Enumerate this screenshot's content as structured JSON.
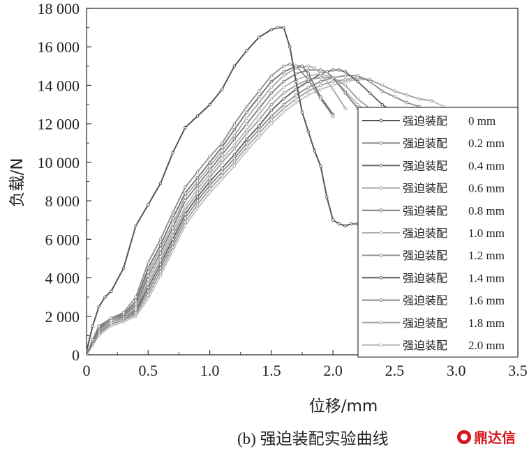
{
  "chart_data": {
    "type": "line",
    "caption_label": "(b)",
    "caption_text": "强迫装配实验曲线",
    "xlabel": "位移/mm",
    "ylabel": "负载/N",
    "xlim": [
      0,
      3.5
    ],
    "ylim": [
      0,
      18000
    ],
    "x_ticks": [
      "0",
      "0.5",
      "1.0",
      "1.5",
      "2.0",
      "2.5",
      "3.0",
      "3.5"
    ],
    "y_ticks": [
      "0",
      "2 000",
      "4 000",
      "6 000",
      "8 000",
      "10 000",
      "12 000",
      "14 000",
      "16 000",
      "18 000"
    ],
    "legend_position": "right",
    "legend_prefix": "强迫装配",
    "series": [
      {
        "name": "0 mm",
        "color": "#555555",
        "x": [
          0,
          0.05,
          0.1,
          0.15,
          0.2,
          0.3,
          0.4,
          0.5,
          0.6,
          0.7,
          0.8,
          0.9,
          1.0,
          1.1,
          1.2,
          1.3,
          1.4,
          1.5,
          1.55,
          1.6,
          1.65,
          1.7,
          1.75,
          1.8,
          1.85,
          1.9,
          1.95,
          2.0,
          2.05,
          2.1,
          2.15,
          2.2
        ],
        "y": [
          200,
          1500,
          2500,
          3000,
          3300,
          4500,
          6700,
          7800,
          8900,
          10500,
          11800,
          12400,
          13000,
          13800,
          15000,
          15800,
          16500,
          16900,
          17000,
          17000,
          16000,
          14200,
          12600,
          11600,
          10600,
          9800,
          8200,
          7000,
          6800,
          6700,
          6800,
          6800
        ]
      },
      {
        "name": "0.2 mm",
        "color": "#8c8c8c",
        "x": [
          0,
          0.05,
          0.1,
          0.2,
          0.3,
          0.4,
          0.5,
          0.6,
          0.7,
          0.8,
          0.9,
          1.0,
          1.1,
          1.2,
          1.3,
          1.4,
          1.5,
          1.6,
          1.65,
          1.7,
          1.8,
          1.9,
          2.0
        ],
        "y": [
          0,
          800,
          1500,
          1900,
          2200,
          3000,
          4800,
          6000,
          7400,
          8700,
          9500,
          10300,
          11000,
          12000,
          12900,
          13700,
          14500,
          15000,
          15100,
          15000,
          14300,
          13300,
          12400
        ]
      },
      {
        "name": "0.4 mm",
        "color": "#6e6e6e",
        "x": [
          0,
          0.05,
          0.1,
          0.2,
          0.3,
          0.4,
          0.5,
          0.6,
          0.7,
          0.8,
          0.9,
          1.0,
          1.1,
          1.2,
          1.3,
          1.4,
          1.5,
          1.6,
          1.7,
          1.75,
          1.8,
          1.9,
          2.0
        ],
        "y": [
          0,
          700,
          1400,
          1900,
          2100,
          2800,
          4500,
          5700,
          7100,
          8400,
          9200,
          10000,
          10800,
          11700,
          12600,
          13400,
          14200,
          14700,
          15000,
          15000,
          14600,
          13400,
          12500
        ]
      },
      {
        "name": "0.6 mm",
        "color": "#a6a6a6",
        "x": [
          0,
          0.05,
          0.1,
          0.2,
          0.3,
          0.4,
          0.5,
          0.6,
          0.7,
          0.8,
          0.9,
          1.0,
          1.1,
          1.2,
          1.3,
          1.4,
          1.5,
          1.6,
          1.7,
          1.8,
          1.85,
          1.9,
          2.0,
          2.1
        ],
        "y": [
          0,
          700,
          1400,
          1800,
          2100,
          2700,
          4300,
          5500,
          6800,
          8200,
          9000,
          9800,
          10600,
          11400,
          12300,
          13100,
          13900,
          14500,
          14900,
          15000,
          14900,
          14600,
          13800,
          12800
        ]
      },
      {
        "name": "0.8 mm",
        "color": "#7d7d7d",
        "x": [
          0,
          0.05,
          0.1,
          0.2,
          0.3,
          0.4,
          0.5,
          0.6,
          0.7,
          0.8,
          0.9,
          1.0,
          1.1,
          1.2,
          1.3,
          1.4,
          1.5,
          1.6,
          1.7,
          1.8,
          1.9,
          1.95,
          2.0,
          2.1,
          2.2
        ],
        "y": [
          0,
          700,
          1300,
          1800,
          2000,
          2600,
          4100,
          5300,
          6600,
          8000,
          8800,
          9600,
          10400,
          11200,
          12000,
          12800,
          13600,
          14200,
          14600,
          14800,
          14800,
          14700,
          14400,
          13600,
          12800
        ]
      },
      {
        "name": "1.0 mm",
        "color": "#b0b0b0",
        "x": [
          0,
          0.05,
          0.1,
          0.2,
          0.3,
          0.4,
          0.5,
          0.6,
          0.7,
          0.8,
          0.9,
          1.0,
          1.1,
          1.2,
          1.3,
          1.4,
          1.5,
          1.6,
          1.7,
          1.8,
          1.9,
          2.0,
          2.1,
          2.2,
          2.3
        ],
        "y": [
          0,
          700,
          1300,
          1700,
          2000,
          2500,
          3900,
          5100,
          6400,
          7700,
          8600,
          9400,
          10200,
          10900,
          11700,
          12500,
          13300,
          13900,
          14300,
          14500,
          14600,
          14400,
          13700,
          13000,
          12600
        ]
      },
      {
        "name": "1.2 mm",
        "color": "#9a9a9a",
        "x": [
          0,
          0.05,
          0.1,
          0.2,
          0.3,
          0.4,
          0.5,
          0.6,
          0.7,
          0.8,
          0.9,
          1.0,
          1.1,
          1.2,
          1.3,
          1.4,
          1.5,
          1.6,
          1.7,
          1.8,
          1.9,
          2.0,
          2.1,
          2.2,
          2.3,
          2.4
        ],
        "y": [
          0,
          600,
          1200,
          1700,
          1900,
          2400,
          3700,
          4900,
          6200,
          7500,
          8400,
          9200,
          10000,
          10700,
          11500,
          12200,
          13000,
          13600,
          14000,
          14300,
          14400,
          14400,
          14000,
          13300,
          12800,
          12500
        ]
      },
      {
        "name": "1.4 mm",
        "color": "#5e5e5e",
        "x": [
          0,
          0.05,
          0.1,
          0.2,
          0.3,
          0.4,
          0.5,
          0.6,
          0.7,
          0.8,
          0.9,
          1.0,
          1.1,
          1.2,
          1.3,
          1.4,
          1.5,
          1.6,
          1.7,
          1.8,
          1.9,
          2.0,
          2.05,
          2.1,
          2.2,
          2.3,
          2.4,
          2.5
        ],
        "y": [
          0,
          600,
          1200,
          1700,
          1900,
          2300,
          3500,
          4700,
          6000,
          7300,
          8200,
          9000,
          9700,
          10400,
          11200,
          11900,
          12700,
          13300,
          13800,
          14200,
          14600,
          14800,
          14800,
          14700,
          14200,
          13600,
          13000,
          12600
        ]
      },
      {
        "name": "1.6 mm",
        "color": "#8a8a8a",
        "x": [
          0,
          0.05,
          0.1,
          0.2,
          0.3,
          0.4,
          0.5,
          0.6,
          0.7,
          0.8,
          0.9,
          1.0,
          1.1,
          1.2,
          1.3,
          1.4,
          1.5,
          1.6,
          1.7,
          1.8,
          1.9,
          2.0,
          2.1,
          2.2,
          2.3,
          2.4,
          2.5,
          2.6,
          2.7
        ],
        "y": [
          0,
          600,
          1100,
          1600,
          1800,
          2200,
          3300,
          4500,
          5800,
          7100,
          8000,
          8800,
          9500,
          10200,
          11000,
          11700,
          12400,
          13000,
          13500,
          13900,
          14200,
          14400,
          14500,
          14500,
          14200,
          13700,
          13400,
          13100,
          12900
        ]
      },
      {
        "name": "1.8 mm",
        "color": "#a0a0a0",
        "x": [
          0,
          0.05,
          0.1,
          0.2,
          0.3,
          0.4,
          0.5,
          0.6,
          0.7,
          0.8,
          0.9,
          1.0,
          1.1,
          1.2,
          1.3,
          1.4,
          1.5,
          1.6,
          1.7,
          1.8,
          1.9,
          2.0,
          2.1,
          2.2,
          2.3,
          2.4,
          2.5,
          2.6,
          2.7,
          2.8
        ],
        "y": [
          0,
          500,
          1100,
          1600,
          1800,
          2100,
          3100,
          4300,
          5600,
          6900,
          7800,
          8600,
          9300,
          10000,
          10800,
          11500,
          12200,
          12800,
          13300,
          13700,
          14000,
          14200,
          14300,
          14400,
          14300,
          14000,
          13700,
          13500,
          13300,
          13200
        ]
      },
      {
        "name": "2.0 mm",
        "color": "#bdbdbd",
        "x": [
          0,
          0.05,
          0.1,
          0.2,
          0.3,
          0.4,
          0.5,
          0.6,
          0.7,
          0.8,
          0.9,
          1.0,
          1.1,
          1.2,
          1.3,
          1.4,
          1.5,
          1.6,
          1.7,
          1.8,
          1.9,
          2.0,
          2.1,
          2.2,
          2.3,
          2.4,
          2.5,
          2.6,
          2.7,
          2.8,
          2.9
        ],
        "y": [
          0,
          500,
          1000,
          1500,
          1700,
          2000,
          2900,
          4100,
          5400,
          6700,
          7600,
          8400,
          9100,
          9800,
          10600,
          11300,
          12000,
          12600,
          13100,
          13500,
          13800,
          14000,
          14200,
          14300,
          14300,
          14000,
          13700,
          13500,
          13300,
          13200,
          12900
        ]
      }
    ]
  },
  "watermark": {
    "text": "鼎达信",
    "color": "#d8141c"
  }
}
